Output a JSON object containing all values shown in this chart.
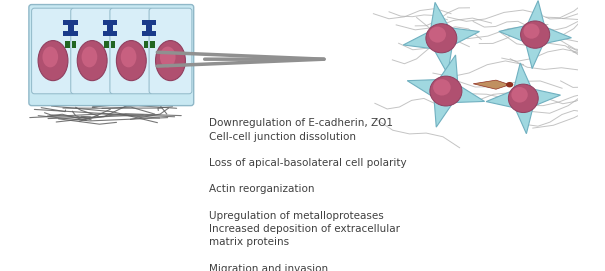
{
  "bg_color": "#ffffff",
  "cell_epithelial": {
    "box_color": "#c8e8f2",
    "box_edge": "#90b8c8",
    "cell_color": "#d8eef8",
    "cell_edge": "#90b8c8",
    "nucleus_color": "#b05070",
    "nucleus_edge": "#904060",
    "nucleus_inner": "#c86080",
    "junction_color": "#1a3a8a",
    "green_rect_color": "#226622"
  },
  "cell_mesenchymal": {
    "cell_color": "#a0d8e0",
    "cell_edge": "#70b0c0",
    "nucleus_color": "#b05070",
    "nucleus_edge": "#904060",
    "nucleus_inner": "#c86080",
    "protrusion_color": "#c09060",
    "protrusion_tip": "#903020"
  },
  "arrow_color": "#909090",
  "fiber_color_left": "#606060",
  "fiber_color_right": "#b0b0b0",
  "text_color": "#404040",
  "text_lines": [
    "Downregulation of E-cadherin, ZO1",
    "Cell-cell junction dissolution",
    "",
    "Loss of apical-basolateral cell polarity",
    "",
    "Actin reorganization",
    "",
    "Upregulation of metalloproteases",
    "Increased deposition of extracellular",
    "matrix proteins",
    "",
    "Migration and invasion"
  ],
  "figsize": [
    6.05,
    2.71
  ],
  "dpi": 100
}
